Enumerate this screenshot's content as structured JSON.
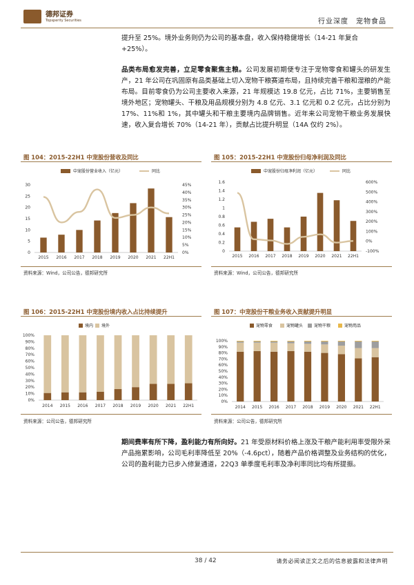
{
  "header": {
    "logo_cn": "德邦证券",
    "logo_en": "Topsperity Securities",
    "tags": "行业深度　宠物食品"
  },
  "paragraphs": {
    "p0_line1": "提升至 25%。境外业务则仍为公司的基本盘，收入保持稳健增长（14-21 年复合",
    "p0_line2": "+25%）。",
    "p1_bold": "品类布局愈发完善，立足零食聚焦主粮。",
    "p1_rest": "公司发展初期便专注于宠物零食和罐头的研发生产，21 年公司在巩固原有品类基础上切入宠物干粮赛道布局，且持续完善干粮和湿粮的产能布局。目前零食仍为公司主要收入来源，21 年规模达 19.8 亿元，占比 71%，主要销售至境外地区；宠物罐头、干粮及用品规模分别为 4.8 亿元、3.1 亿元和 0.2 亿元，占比分别为 17%、11%和 1%，其中罐头和干粮主要境内品牌销售。近年来公司宠物干粮业务发展快速，收入复合增长 70%（14-21 年），贡献占比提升明显（14A 仅约 2%）。",
    "p2_bold": "期间费率有所下降，盈利能力有所向好。",
    "p2_rest": "21 年受原材料价格上涨及干粮产能利用率受限外采产品拖累影响，公司毛利率降低至 20%（-4.6pct），随着产品价格调整及业务结构的优化，公司的盈利能力已步入修复通道，22Q3 单季度毛利率及净利率同比均有所提振。"
  },
  "figures": {
    "f104_title": "图 104：2015-22H1 中宠股份营收及同比",
    "f105_title": "图 105：2015-22H1 中宠股份归母净利润及同比",
    "f106_title": "图 106：2015-22H1 中宠股份境内收入占比持续提升",
    "f107_title": "图 107：中宠股份干粮业务收入贡献提升明显",
    "source_a": "资料来源：Wind，公司公告，德邦研究所",
    "source_b": "资料来源：Wind，公司公告，德邦研究所",
    "source_c": "资料来源：公司公告，德邦研究所",
    "source_d": "资料来源：公司公告，德邦研究所"
  },
  "chart_data": [
    {
      "type": "bar+line",
      "title": "图 104：2015-22H1 中宠股份营收及同比",
      "categories": [
        "2015",
        "2016",
        "2017",
        "2018",
        "2019",
        "2020",
        "2021",
        "22H1"
      ],
      "legend": [
        "中宠股份营业收入（亿元）",
        "同比"
      ],
      "series": [
        {
          "name": "中宠股份营业收入（亿元）",
          "axis": "left",
          "values": [
            6.6,
            7.9,
            10.0,
            14.2,
            17.5,
            21.9,
            28.4,
            15.7
          ]
        },
        {
          "name": "同比",
          "axis": "right",
          "values": [
            0.37,
            0.2,
            0.27,
            0.42,
            0.23,
            0.25,
            0.3,
            0.26
          ]
        }
      ],
      "yleft": {
        "min": 0,
        "max": 30,
        "ticks": [
          0,
          5,
          10,
          15,
          20,
          25,
          30
        ]
      },
      "yright": {
        "min": 0,
        "max": 0.45,
        "ticks": [
          "0%",
          "5%",
          "10%",
          "15%",
          "20%",
          "25%",
          "30%",
          "35%",
          "40%",
          "45%"
        ]
      },
      "colors": {
        "bar": "#8a5a2c",
        "line": "#d9c4a0"
      }
    },
    {
      "type": "bar+line",
      "title": "图 105：2015-22H1 中宠股份归母净利润及同比",
      "categories": [
        "2015",
        "2016",
        "2017",
        "2018",
        "2019",
        "2020",
        "2021",
        "22H1"
      ],
      "legend": [
        "中宠股份归母净利润（亿元）",
        "同比"
      ],
      "series": [
        {
          "name": "中宠股份归母净利润（亿元）",
          "axis": "left",
          "values": [
            0.55,
            0.68,
            0.75,
            0.55,
            0.8,
            1.35,
            1.18,
            0.7
          ]
        },
        {
          "name": "同比",
          "axis": "right",
          "values": [
            4.9,
            0.2,
            0.08,
            -0.27,
            0.45,
            0.7,
            -0.14,
            0.03
          ]
        }
      ],
      "yleft": {
        "min": 0,
        "max": 1.6,
        "ticks": [
          "0",
          "0.2",
          "0.4",
          "0.6",
          "0.8",
          "1",
          "1.2",
          "1.4",
          "1.6"
        ]
      },
      "yright": {
        "min": -1,
        "max": 6,
        "ticks": [
          "-100%",
          "0%",
          "100%",
          "200%",
          "300%",
          "400%",
          "500%",
          "600%"
        ]
      },
      "colors": {
        "bar": "#8a5a2c",
        "line": "#d9c4a0"
      }
    },
    {
      "type": "stacked-bar-100",
      "title": "图 106：2015-22H1 中宠股份境内收入占比持续提升",
      "categories": [
        "2014",
        "2015",
        "2016",
        "2017",
        "2018",
        "2019",
        "2020",
        "2021",
        "22H1"
      ],
      "series": [
        {
          "name": "境内",
          "values": [
            0.11,
            0.12,
            0.12,
            0.13,
            0.17,
            0.2,
            0.25,
            0.25,
            0.26
          ]
        },
        {
          "name": "境外",
          "values": [
            0.89,
            0.88,
            0.88,
            0.87,
            0.83,
            0.8,
            0.75,
            0.75,
            0.74
          ]
        }
      ],
      "ylim": [
        0,
        1
      ],
      "yticks": [
        "0%",
        "10%",
        "20%",
        "30%",
        "40%",
        "50%",
        "60%",
        "70%",
        "80%",
        "90%",
        "100%"
      ],
      "colors": {
        "境内": "#8a5a2c",
        "境外": "#d9c4a0"
      }
    },
    {
      "type": "stacked-bar-100",
      "title": "图 107：中宠股份干粮业务收入贡献提升明显",
      "categories": [
        "2014",
        "2015",
        "2016",
        "2017",
        "2018",
        "2019",
        "2020",
        "2021",
        "22H1"
      ],
      "series": [
        {
          "name": "宠物零食",
          "values": [
            0.82,
            0.83,
            0.82,
            0.83,
            0.82,
            0.8,
            0.78,
            0.71,
            0.73
          ]
        },
        {
          "name": "宠物罐头",
          "values": [
            0.15,
            0.14,
            0.15,
            0.13,
            0.13,
            0.14,
            0.14,
            0.17,
            0.15
          ]
        },
        {
          "name": "宠物干粮",
          "values": [
            0.02,
            0.02,
            0.02,
            0.03,
            0.04,
            0.05,
            0.07,
            0.11,
            0.11
          ]
        },
        {
          "name": "宠物用品",
          "values": [
            0.01,
            0.01,
            0.01,
            0.01,
            0.01,
            0.01,
            0.01,
            0.01,
            0.01
          ]
        }
      ],
      "ylim": [
        0,
        1
      ],
      "yticks": [
        "0%",
        "10%",
        "20%",
        "30%",
        "40%",
        "50%",
        "60%",
        "70%",
        "80%",
        "90%",
        "100%"
      ],
      "colors": {
        "宠物零食": "#8a5a2c",
        "宠物罐头": "#d9c4a0",
        "宠物干粮": "#9e9e9e",
        "宠物用品": "#e8b84a"
      }
    }
  ],
  "footer": {
    "page": "38 / 42",
    "disclaimer": "请务必阅读正文之后的信息披露和法律声明"
  }
}
